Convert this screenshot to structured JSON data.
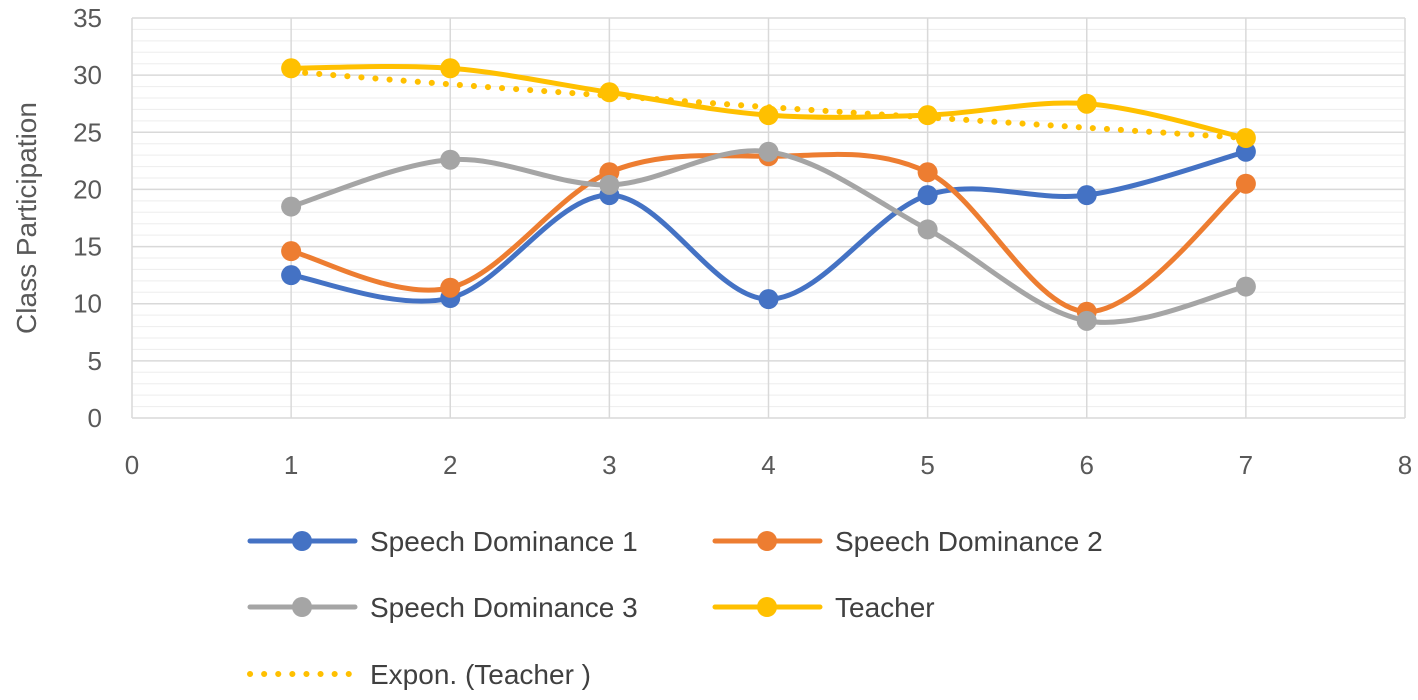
{
  "chart_data": {
    "type": "line",
    "title": "",
    "xlabel": "",
    "ylabel": "Class Participation",
    "xlim": [
      0,
      8
    ],
    "ylim": [
      0,
      35
    ],
    "x_ticks": [
      0,
      1,
      2,
      3,
      4,
      5,
      6,
      7,
      8
    ],
    "y_ticks": [
      0,
      5,
      10,
      15,
      20,
      25,
      30,
      35
    ],
    "minor_grid_step": 1,
    "grid": true,
    "smooth": true,
    "legend_position": "bottom",
    "series": [
      {
        "name": "Speech Dominance 1",
        "color": "#4472C4",
        "style": "solid",
        "marker": "circle",
        "x": [
          1,
          2,
          3,
          4,
          5,
          6,
          7
        ],
        "y": [
          12.5,
          10.5,
          19.5,
          10.4,
          19.5,
          19.5,
          23.3
        ]
      },
      {
        "name": "Speech Dominance 2",
        "color": "#ED7D31",
        "style": "solid",
        "marker": "circle",
        "x": [
          1,
          2,
          3,
          4,
          5,
          6,
          7
        ],
        "y": [
          14.6,
          11.4,
          21.5,
          22.9,
          21.5,
          9.3,
          20.5
        ]
      },
      {
        "name": "Speech Dominance 3",
        "color": "#A5A5A5",
        "style": "solid",
        "marker": "circle",
        "x": [
          1,
          2,
          3,
          4,
          5,
          6,
          7
        ],
        "y": [
          18.5,
          22.6,
          20.4,
          23.3,
          16.5,
          8.5,
          11.5
        ]
      },
      {
        "name": "Teacher",
        "color": "#FFC000",
        "style": "solid",
        "marker": "circle",
        "x": [
          1,
          2,
          3,
          4,
          5,
          6,
          7
        ],
        "y": [
          30.6,
          30.6,
          28.5,
          26.5,
          26.5,
          27.5,
          24.5
        ]
      },
      {
        "name": "Expon. (Teacher )",
        "color": "#FFC000",
        "style": "dotted",
        "marker": "none",
        "x": [
          1,
          2,
          3,
          4,
          5,
          6,
          7
        ],
        "y": [
          30.3,
          29.2,
          28.2,
          27.2,
          26.3,
          25.4,
          24.5
        ]
      }
    ]
  }
}
